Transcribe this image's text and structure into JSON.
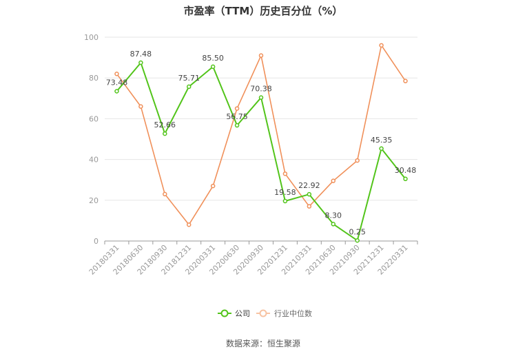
{
  "chart_data": {
    "type": "line",
    "title": "市盈率（TTM）历史百分位（%）",
    "xlabel": "",
    "ylabel": "",
    "ylim": [
      0,
      100
    ],
    "yticks": [
      0,
      20,
      40,
      60,
      80,
      100
    ],
    "grid": true,
    "legend_position": "bottom-center",
    "categories": [
      "20180331",
      "20180630",
      "20180930",
      "20181231",
      "20200331",
      "20200630",
      "20200930",
      "20201231",
      "20210331",
      "20210630",
      "20210930",
      "20211231",
      "20220331"
    ],
    "series": [
      {
        "name": "公司",
        "color": "#52c41a",
        "show_labels": true,
        "values": [
          73.48,
          87.48,
          52.66,
          75.71,
          85.5,
          56.75,
          70.38,
          19.58,
          22.92,
          8.3,
          0.25,
          45.35,
          30.48
        ],
        "labels": [
          "73.48",
          "87.48",
          "52.66",
          "75.71",
          "85.50",
          "56.75",
          "70.38",
          "19.58",
          "22.92",
          "8.30",
          "0.25",
          "45.35",
          "30.48"
        ]
      },
      {
        "name": "行业中位数",
        "color": "#f0905a",
        "show_labels": false,
        "values": [
          82,
          66,
          23,
          8,
          27,
          65,
          91,
          33,
          17,
          29.5,
          39.5,
          96,
          78.5
        ]
      }
    ]
  },
  "source_note": "数据来源：恒生聚源"
}
